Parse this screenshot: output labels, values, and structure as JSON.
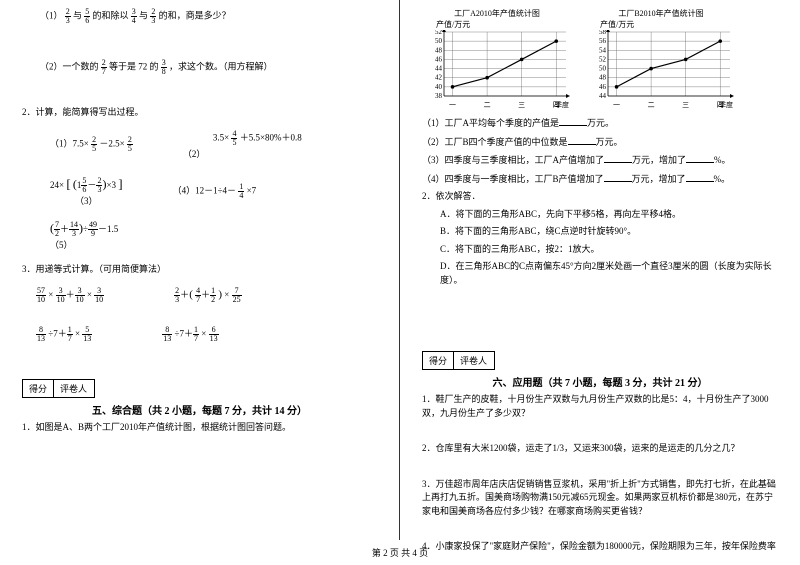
{
  "left": {
    "q1_1": "（1）",
    "q1_1_text_a": "与",
    "q1_1_text_b": "的和除以",
    "q1_1_text_c": "与",
    "q1_1_text_d": "的和，商是多少？",
    "q1_2": "（2）一个数的",
    "q1_2_b": "等于是 72 的",
    "q1_2_c": "，求这个数。（用方程解）",
    "q2": "2．计算，能简算得写出过程。",
    "q2_1_pre": "（1）7.5×",
    "q2_1_mid": "－2.5×",
    "q2_2_pre": "3.5×",
    "q2_2_post": "＋5.5×80%＋0.8",
    "q2_2_label": "（2）",
    "q2_3_pre": "24×",
    "q2_3_label": "（3）",
    "q2_4_pre": "（4）12－1÷4－",
    "q2_4_post": "×7",
    "q2_5_label": "（5）",
    "q3": "3．用递等式计算。（可用简便算法）",
    "score_a": "得分",
    "score_b": "评卷人",
    "sec5": "五、综合题（共 2 小题，每题 7 分，共计 14 分）",
    "q5_1": "1．如图是A、B两个工厂2010年产值统计图，根据统计图回答问题。"
  },
  "right": {
    "chartA": {
      "title": "工厂A2010年产值统计图",
      "ylabel": "产值/万元",
      "xlabel": "季度",
      "yticks": [
        "52",
        "50",
        "48",
        "46",
        "44",
        "42",
        "40",
        "38"
      ],
      "xticks": [
        "一",
        "二",
        "三",
        "四"
      ],
      "points": [
        [
          0,
          40
        ],
        [
          1,
          42
        ],
        [
          2,
          46
        ],
        [
          3,
          50
        ]
      ],
      "ylim": [
        38,
        52
      ],
      "line_color": "#000000",
      "grid_color": "#666666",
      "marker": "circle"
    },
    "chartB": {
      "title": "工厂B2010年产值统计图",
      "ylabel": "产值/万元",
      "xlabel": "季度",
      "yticks": [
        "58",
        "56",
        "54",
        "52",
        "50",
        "48",
        "46",
        "44"
      ],
      "xticks": [
        "一",
        "二",
        "三",
        "四"
      ],
      "points": [
        [
          0,
          46
        ],
        [
          1,
          50
        ],
        [
          2,
          52
        ],
        [
          3,
          56
        ]
      ],
      "ylim": [
        44,
        58
      ],
      "line_color": "#000000",
      "grid_color": "#666666",
      "marker": "circle"
    },
    "r1": "（1）工厂A平均每个季度的产值是",
    "r1b": "万元。",
    "r2": "（2）工厂B四个季度产值的中位数是",
    "r2b": "万元。",
    "r3": "（3）四季度与三季度相比，工厂A产值增加了",
    "r3b": "万元，增加了",
    "r3c": "%。",
    "r4": "（4）四季度与一季度相比，工厂B产值增加了",
    "r4b": "万元，增加了",
    "r4c": "%。",
    "r5": "2．依次解答．",
    "r5a": "A．将下面的三角形ABC，先向下平移5格，再向左平移4格。",
    "r5b": "B．将下面的三角形ABC，绕C点逆时针旋转90°。",
    "r5c": "C．将下面的三角形ABC，按2：1放大。",
    "r5d": "D．在三角形ABC的C点南偏东45°方向2厘米处画一个直径3厘米的圆（长度为实际长度）。",
    "score_a": "得分",
    "score_b": "评卷人",
    "sec6": "六、应用题（共 7 小题，每题 3 分，共计 21 分）",
    "q1": "1．鞋厂生产的皮鞋，十月份生产双数与九月份生产双数的比是5：4，十月份生产了3000双，九月份生产了多少双？",
    "q2": "2．仓库里有大米1200袋，运走了1/3，又运来300袋，运来的是运走的几分之几？",
    "q3": "3．万佳超市周年店庆店促销销售豆浆机，采用\"折上折\"方式销售，即先打七折，在此基础上再打九五折。国美商场购物满150元减65元现金。如果两家豆机标价都是380元，在苏宁家电和国美商场各应付多少钱？在哪家商场购买更省钱？",
    "q4": "4．小康家投保了\"家庭财产保险\"，保险金额为180000元，保险期限为三年，按年保险费率"
  },
  "footer": "第 2 页 共 4 页"
}
